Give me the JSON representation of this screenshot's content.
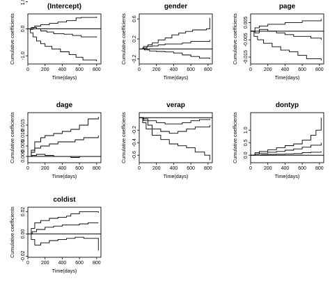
{
  "chart_data": [
    {
      "type": "line",
      "title": "(Intercept)",
      "xlabel": "Time(days)",
      "ylabel": "Cumulative coefficients",
      "xlim": [
        0,
        850
      ],
      "ylim": [
        -1.3,
        0.55
      ],
      "xticks": [
        0,
        200,
        400,
        600,
        800
      ],
      "yticks": [
        -1.0,
        0.0,
        1.0
      ],
      "ytick_labels": [
        "-1.0",
        "0.0",
        "1.0"
      ],
      "hline": 0.0,
      "series": [
        {
          "x": [
            0,
            40,
            80,
            150,
            250,
            350,
            450,
            560,
            620,
            800
          ],
          "y": [
            0.0,
            0.05,
            0.1,
            0.15,
            0.2,
            0.25,
            0.3,
            0.4,
            0.42,
            0.45
          ]
        },
        {
          "x": [
            0,
            30,
            60,
            100,
            150,
            220,
            300,
            420,
            520,
            620,
            800
          ],
          "y": [
            0.0,
            -0.02,
            0.05,
            0.0,
            -0.08,
            -0.12,
            -0.18,
            -0.2,
            -0.25,
            -0.3,
            -0.32
          ]
        },
        {
          "x": [
            0,
            30,
            60,
            100,
            150,
            200,
            280,
            380,
            480,
            560,
            640,
            800
          ],
          "y": [
            0.0,
            -0.15,
            -0.3,
            -0.45,
            -0.55,
            -0.65,
            -0.75,
            -0.85,
            -0.95,
            -1.05,
            -1.15,
            -1.2
          ]
        }
      ]
    },
    {
      "type": "line",
      "title": "gender",
      "xlabel": "Time(days)",
      "ylabel": "Cumulative coefficients",
      "xlim": [
        0,
        850
      ],
      "ylim": [
        -0.3,
        0.7
      ],
      "xticks": [
        0,
        200,
        400,
        600,
        800
      ],
      "yticks": [
        -0.2,
        0.2,
        0.6
      ],
      "ytick_labels": [
        "-0.2",
        "0.2",
        "0.6"
      ],
      "hline": 0.0,
      "series": [
        {
          "x": [
            0,
            50,
            100,
            150,
            220,
            300,
            380,
            460,
            540,
            620,
            780,
            820
          ],
          "y": [
            0.0,
            0.05,
            0.08,
            0.12,
            0.18,
            0.22,
            0.28,
            0.32,
            0.35,
            0.38,
            0.4,
            0.62
          ]
        },
        {
          "x": [
            0,
            40,
            90,
            150,
            220,
            300,
            400,
            500,
            600,
            700,
            820
          ],
          "y": [
            0.0,
            0.02,
            0.05,
            0.06,
            0.08,
            0.1,
            0.1,
            0.12,
            0.15,
            0.15,
            0.18
          ]
        },
        {
          "x": [
            0,
            60,
            120,
            200,
            300,
            400,
            500,
            600,
            700,
            820
          ],
          "y": [
            0.0,
            -0.02,
            -0.04,
            -0.05,
            -0.06,
            -0.08,
            -0.12,
            -0.15,
            -0.18,
            -0.2
          ]
        }
      ]
    },
    {
      "type": "line",
      "title": "page",
      "xlabel": "Time(days)",
      "ylabel": "Cumulative coefficients",
      "xlim": [
        0,
        850
      ],
      "ylim": [
        -0.019,
        0.01
      ],
      "xticks": [
        0,
        200,
        400,
        600,
        800
      ],
      "yticks": [
        -0.015,
        -0.005,
        0.005
      ],
      "ytick_labels": [
        "-0.015",
        "-0.005",
        "0.005"
      ],
      "hline": 0.0,
      "series": [
        {
          "x": [
            0,
            50,
            100,
            200,
            300,
            400,
            500,
            600,
            700,
            820
          ],
          "y": [
            0.0,
            0.002,
            0.003,
            0.004,
            0.004,
            0.005,
            0.005,
            0.006,
            0.006,
            0.007
          ]
        },
        {
          "x": [
            0,
            50,
            100,
            200,
            300,
            400,
            500,
            600,
            700,
            820
          ],
          "y": [
            0.0,
            -0.001,
            0.001,
            0.0,
            -0.001,
            -0.002,
            -0.003,
            -0.003,
            -0.004,
            -0.005
          ]
        },
        {
          "x": [
            0,
            40,
            80,
            150,
            250,
            350,
            450,
            550,
            650,
            820
          ],
          "y": [
            0.0,
            -0.003,
            -0.005,
            -0.007,
            -0.009,
            -0.011,
            -0.012,
            -0.014,
            -0.016,
            -0.017
          ]
        }
      ]
    },
    {
      "type": "line",
      "title": "dage",
      "xlabel": "Time(days)",
      "ylabel": "Cumulative coefficients",
      "xlim": [
        0,
        850
      ],
      "ylim": [
        -0.003,
        0.021
      ],
      "xticks": [
        0,
        200,
        400,
        600,
        800
      ],
      "yticks": [
        0.0,
        0.005,
        0.01,
        0.015
      ],
      "ytick_labels": [
        "0.000",
        "0.005",
        "0.010",
        "0.015"
      ],
      "hline": 0.0,
      "series": [
        {
          "x": [
            0,
            40,
            80,
            150,
            200,
            300,
            400,
            500,
            600,
            700,
            820
          ],
          "y": [
            0.0,
            0.003,
            0.007,
            0.009,
            0.01,
            0.011,
            0.012,
            0.013,
            0.015,
            0.018,
            0.019
          ]
        },
        {
          "x": [
            0,
            40,
            80,
            150,
            250,
            350,
            450,
            550,
            650,
            820
          ],
          "y": [
            0.0,
            0.002,
            0.004,
            0.005,
            0.006,
            0.007,
            0.007,
            0.008,
            0.009,
            0.01
          ]
        },
        {
          "x": [
            0,
            50,
            100,
            200,
            300,
            400,
            500,
            600,
            700,
            820
          ],
          "y": [
            0.0,
            0.0005,
            0.001,
            0.0005,
            0.0,
            0.0,
            -0.0005,
            0.0,
            0.0,
            0.0
          ]
        }
      ]
    },
    {
      "type": "line",
      "title": "verap",
      "xlabel": "Time(days)",
      "ylabel": "Cumulative coefficients",
      "xlim": [
        0,
        850
      ],
      "ylim": [
        -0.72,
        0.08
      ],
      "xticks": [
        0,
        200,
        400,
        600,
        800
      ],
      "yticks": [
        -0.6,
        -0.4,
        -0.2
      ],
      "ytick_labels": [
        "-0.6",
        "-0.4",
        "-0.2"
      ],
      "hline": 0.0,
      "series": [
        {
          "x": [
            0,
            50,
            100,
            200,
            300,
            400,
            500,
            600,
            700,
            820
          ],
          "y": [
            0.0,
            -0.02,
            -0.05,
            -0.08,
            -0.1,
            -0.1,
            -0.08,
            -0.05,
            -0.03,
            -0.02
          ]
        },
        {
          "x": [
            0,
            50,
            100,
            150,
            250,
            350,
            450,
            550,
            650,
            820
          ],
          "y": [
            0.0,
            -0.05,
            -0.12,
            -0.18,
            -0.22,
            -0.25,
            -0.22,
            -0.18,
            -0.15,
            -0.12
          ]
        },
        {
          "x": [
            0,
            40,
            80,
            150,
            250,
            350,
            450,
            550,
            650,
            760,
            820
          ],
          "y": [
            0.0,
            -0.08,
            -0.18,
            -0.28,
            -0.35,
            -0.42,
            -0.45,
            -0.48,
            -0.55,
            -0.6,
            -0.68
          ]
        }
      ]
    },
    {
      "type": "line",
      "title": "dontyp",
      "xlabel": "Time(days)",
      "ylabel": "Cumulative coefficients",
      "xlim": [
        0,
        850
      ],
      "ylim": [
        -0.3,
        1.7
      ],
      "xticks": [
        0,
        200,
        400,
        600,
        800
      ],
      "yticks": [
        0.0,
        0.5,
        1.0
      ],
      "ytick_labels": [
        "0.0",
        "0.5",
        "1.0"
      ],
      "hline": 0.0,
      "series": [
        {
          "x": [
            0,
            50,
            100,
            200,
            300,
            400,
            500,
            600,
            700,
            760,
            820
          ],
          "y": [
            0.0,
            0.1,
            0.15,
            0.22,
            0.3,
            0.38,
            0.45,
            0.6,
            0.8,
            1.0,
            1.5
          ]
        },
        {
          "x": [
            0,
            50,
            100,
            200,
            300,
            400,
            500,
            600,
            700,
            820
          ],
          "y": [
            0.0,
            0.05,
            0.08,
            0.12,
            0.15,
            0.2,
            0.25,
            0.32,
            0.4,
            0.5
          ]
        },
        {
          "x": [
            0,
            60,
            120,
            200,
            300,
            400,
            500,
            600,
            700,
            820
          ],
          "y": [
            0.0,
            0.0,
            0.02,
            0.03,
            0.04,
            0.05,
            0.06,
            0.1,
            0.12,
            0.15
          ]
        }
      ]
    },
    {
      "type": "line",
      "title": "coldist",
      "xlabel": "Time(days)",
      "ylabel": "Cumulative coefficients",
      "xlim": [
        0,
        850
      ],
      "ylim": [
        -0.021,
        0.024
      ],
      "xticks": [
        0,
        200,
        400,
        600,
        800
      ],
      "yticks": [
        -0.02,
        0.0,
        0.02
      ],
      "ytick_labels": [
        "-0.02",
        "0.00",
        "0.02"
      ],
      "hline": 0.0,
      "series": [
        {
          "x": [
            0,
            40,
            80,
            150,
            250,
            350,
            450,
            500,
            600,
            700,
            820
          ],
          "y": [
            0.0,
            0.005,
            0.01,
            0.012,
            0.014,
            0.015,
            0.016,
            0.018,
            0.02,
            0.02,
            0.019
          ]
        },
        {
          "x": [
            0,
            50,
            100,
            200,
            300,
            400,
            500,
            600,
            700,
            820
          ],
          "y": [
            0.0,
            0.002,
            0.004,
            0.006,
            0.007,
            0.008,
            0.008,
            0.009,
            0.01,
            0.01
          ]
        },
        {
          "x": [
            0,
            40,
            80,
            150,
            250,
            350,
            450,
            550,
            650,
            820
          ],
          "y": [
            0.0,
            -0.005,
            -0.01,
            -0.008,
            -0.006,
            -0.005,
            -0.004,
            -0.003,
            -0.004,
            -0.015
          ]
        }
      ]
    }
  ]
}
